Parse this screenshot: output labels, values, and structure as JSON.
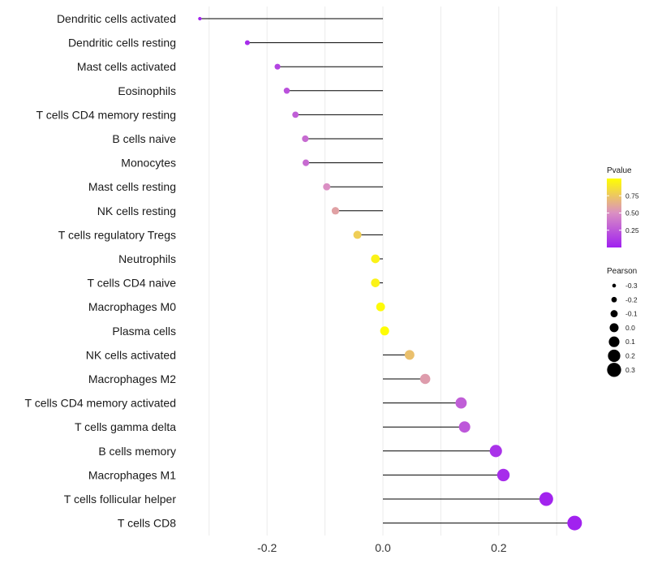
{
  "chart_data": {
    "type": "lollipop",
    "title": "",
    "xlabel": "",
    "ylabel": "",
    "xlim": [
      -0.325,
      0.335
    ],
    "x_ticks": [
      -0.2,
      0.0,
      0.2
    ],
    "x_tick_labels": [
      "-0.2",
      "0.0",
      "0.2"
    ],
    "grid": true,
    "categories": [
      "Dendritic cells activated",
      "Dendritic cells resting",
      "Mast cells activated",
      "Eosinophils",
      "T cells CD4 memory resting",
      "B cells naive",
      "Monocytes",
      "Mast cells resting",
      "NK cells resting",
      "T cells regulatory  Tregs ",
      "Neutrophils",
      "T cells CD4 naive",
      "Macrophages M0",
      "Plasma cells",
      "NK cells activated",
      "Macrophages M2",
      "T cells CD4 memory activated",
      "T cells gamma delta",
      "B cells memory",
      "Macrophages M1",
      "T cells follicular helper",
      "T cells CD8"
    ],
    "pearson": [
      -0.316,
      -0.234,
      -0.182,
      -0.166,
      -0.151,
      -0.134,
      -0.133,
      -0.097,
      -0.082,
      -0.044,
      -0.013,
      -0.013,
      -0.004,
      0.003,
      0.046,
      0.073,
      0.135,
      0.141,
      0.195,
      0.208,
      0.282,
      0.331
    ],
    "pvalue": [
      0.02,
      0.06,
      0.16,
      0.22,
      0.28,
      0.34,
      0.34,
      0.5,
      0.58,
      0.78,
      0.94,
      0.94,
      0.98,
      0.99,
      0.72,
      0.56,
      0.28,
      0.25,
      0.08,
      0.06,
      0.02,
      0.01
    ],
    "color_legend": {
      "title": "Pvalue",
      "ticks": [
        0.75,
        0.5,
        0.25
      ],
      "tick_labels": [
        "0.75",
        "0.50",
        "0.25"
      ],
      "range": [
        0.0,
        1.0
      ],
      "low_color": "#a020f0",
      "mid_color": "#da8fc3",
      "high_color": "#ffff00"
    },
    "size_legend": {
      "title": "Pearson",
      "values": [
        -0.3,
        -0.2,
        -0.1,
        0.0,
        0.1,
        0.2,
        0.3
      ],
      "labels": [
        "-0.3",
        "-0.2",
        "-0.1",
        "0.0",
        "0.1",
        "0.2",
        "0.3"
      ]
    }
  }
}
